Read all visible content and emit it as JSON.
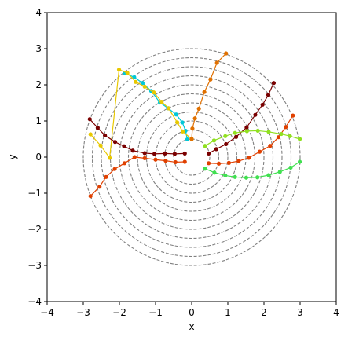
{
  "chart_data": {
    "type": "line",
    "title": "",
    "xlabel": "x",
    "ylabel": "y",
    "xlim": [
      -4,
      4
    ],
    "ylim": [
      -4,
      4
    ],
    "xticks": [
      -4,
      -3,
      -2,
      -1,
      0,
      1,
      2,
      3,
      4
    ],
    "yticks": [
      -4,
      -3,
      -2,
      -1,
      0,
      1,
      2,
      3,
      4
    ],
    "aspect": "equal",
    "grid": false,
    "legend": "none",
    "circles": {
      "radii": [
        0.5,
        0.75,
        1.0,
        1.25,
        1.5,
        1.75,
        2.0,
        2.25,
        2.5,
        2.75,
        3.0
      ],
      "center": [
        0,
        0
      ],
      "color": "#808080",
      "style": "dashed"
    },
    "series": [
      {
        "color": "#00c8d8",
        "marker": "#00c8d8",
        "x": [
          -0.12,
          -0.17,
          -0.26,
          -0.43,
          -0.65,
          -0.88,
          -1.12,
          -1.36,
          -1.59,
          -1.85
        ],
        "y": [
          0.49,
          0.73,
          0.96,
          1.18,
          1.35,
          1.51,
          1.83,
          2.05,
          2.21,
          2.32
        ]
      },
      {
        "color": "#e8c800",
        "marker": "#e8c800",
        "x": [
          0.0,
          -0.25,
          -0.4,
          -0.64,
          -0.83,
          -1.05,
          -1.3,
          -1.55,
          -1.78,
          -2.01,
          -2.27,
          -2.52,
          -2.8
        ],
        "y": [
          0.5,
          0.71,
          0.96,
          1.35,
          1.53,
          1.79,
          1.95,
          2.08,
          2.33,
          2.42,
          -0.02,
          0.32,
          0.63
        ]
      },
      {
        "color": "#e07000",
        "marker": "#e07000",
        "x": [
          0.0,
          0.02,
          0.09,
          0.2,
          0.35,
          0.52,
          0.7,
          0.95
        ],
        "y": [
          0.5,
          0.79,
          1.07,
          1.34,
          1.8,
          2.15,
          2.61,
          2.87
        ]
      },
      {
        "color": "#7a0000",
        "marker": "#7a0000",
        "x": [
          -0.19,
          -0.47,
          -0.74,
          -1.03,
          -1.3,
          -1.63,
          -1.87,
          -2.12,
          -2.4,
          -2.6,
          -2.82
        ],
        "y": [
          0.1,
          0.09,
          0.1,
          0.09,
          0.11,
          0.18,
          0.3,
          0.42,
          0.6,
          0.81,
          1.05
        ]
      },
      {
        "color": "#7a0000",
        "marker": "#7a0000",
        "x": [
          0.47,
          0.68,
          0.95,
          1.23,
          1.52,
          1.76,
          1.96,
          2.12,
          2.27
        ],
        "y": [
          0.1,
          0.22,
          0.36,
          0.56,
          0.82,
          1.17,
          1.45,
          1.72,
          2.05
        ]
      },
      {
        "color": "#e04000",
        "marker": "#e04000",
        "x": [
          -0.19,
          -0.45,
          -0.72,
          -1.0,
          -1.3,
          -1.58,
          -1.86,
          -2.13,
          -2.37,
          -2.55,
          -2.8
        ],
        "y": [
          -0.13,
          -0.14,
          -0.1,
          -0.07,
          -0.03,
          0.0,
          -0.17,
          -0.33,
          -0.55,
          -0.82,
          -1.08
        ]
      },
      {
        "color": "#e04000",
        "marker": "#e04000",
        "x": [
          0.47,
          0.75,
          1.03,
          1.3,
          1.58,
          1.88,
          2.17,
          2.4,
          2.6,
          2.8
        ],
        "y": [
          -0.17,
          -0.18,
          -0.16,
          -0.11,
          -0.02,
          0.15,
          0.31,
          0.55,
          0.83,
          1.15
        ]
      },
      {
        "color": "#90e020",
        "marker": "#90e020",
        "x": [
          0.37,
          0.62,
          0.93,
          1.2,
          1.53,
          1.83,
          2.13,
          2.48,
          2.72,
          2.99
        ],
        "y": [
          0.31,
          0.46,
          0.58,
          0.67,
          0.72,
          0.73,
          0.7,
          0.64,
          0.58,
          0.5
        ]
      },
      {
        "color": "#40e050",
        "marker": "#40e050",
        "x": [
          0.37,
          0.63,
          0.93,
          1.2,
          1.51,
          1.82,
          2.13,
          2.44,
          2.74,
          2.99
        ],
        "y": [
          -0.32,
          -0.43,
          -0.51,
          -0.55,
          -0.57,
          -0.56,
          -0.5,
          -0.41,
          -0.29,
          -0.13
        ]
      }
    ]
  }
}
